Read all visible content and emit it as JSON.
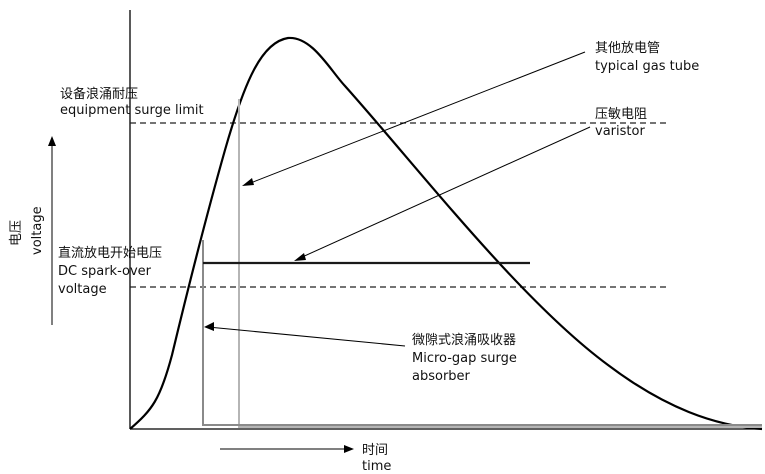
{
  "labels": {
    "equipment_limit_cn": "设备浪涌耐压",
    "equipment_limit_en": "equipment surge limit",
    "gas_tube_cn": "其他放电管",
    "gas_tube_en": "typical gas tube",
    "varistor_cn": "压敏电阻",
    "varistor_en": "varistor",
    "voltage_cn": "电压",
    "voltage_en": "voltage",
    "dc_sparkover_cn": "直流放电开始电压",
    "dc_sparkover_en1": "DC spark-over",
    "dc_sparkover_en2": "voltage",
    "microgap_cn": "微隙式浪涌吸收器",
    "microgap_en1": "Micro-gap surge",
    "microgap_en2": "absorber",
    "time_cn": "时间",
    "time_en": "time"
  },
  "colors": {
    "curve": "#000000",
    "gas_tube": "#b5b5b5",
    "microgap": "#8a8a8a",
    "varistor": "#1a1a1a",
    "dashed": "#222222"
  }
}
